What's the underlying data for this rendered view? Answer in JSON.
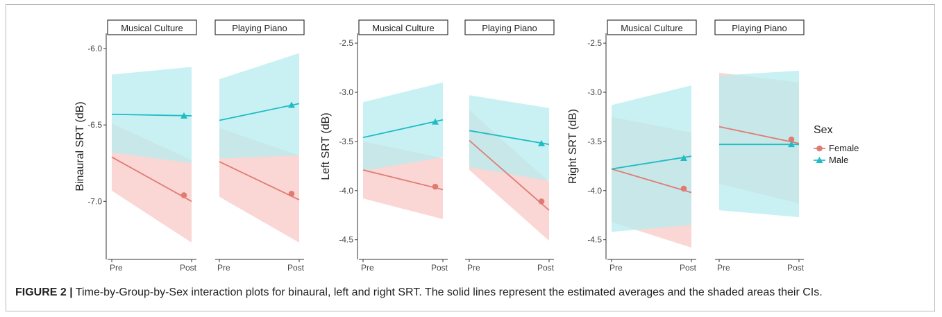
{
  "caption": {
    "label": "FIGURE 2 |",
    "text": " Time-by-Group-by-Sex interaction plots for binaural, left and right SRT. The solid lines represent the estimated averages and the shaded areas their CIs."
  },
  "colors": {
    "Female": "#e07b74",
    "Female_band": "#f8c9c6",
    "Male": "#1fbcc4",
    "Male_band": "#b7ecef"
  },
  "legend": {
    "title": "Sex",
    "items": [
      "Female",
      "Male"
    ],
    "placement": "right"
  },
  "chart_data": [
    {
      "type": "line",
      "ylabel": "Binaural SRT (dB)",
      "yticks": [
        -6.0,
        -6.5,
        -7.0
      ],
      "ylim": [
        -7.38,
        -5.9
      ],
      "x": [
        "Pre",
        "Post"
      ],
      "panels": [
        {
          "title": "Musical Culture",
          "series": [
            {
              "name": "Female",
              "values": [
                -6.71,
                -7.0
              ],
              "marker": -6.96,
              "ci_lower": [
                -6.93,
                -7.27
              ],
              "ci_upper": [
                -6.49,
                -6.73
              ]
            },
            {
              "name": "Male",
              "values": [
                -6.43,
                -6.44
              ],
              "marker": -6.44,
              "ci_lower": [
                -6.68,
                -6.75
              ],
              "ci_upper": [
                -6.17,
                -6.12
              ]
            }
          ]
        },
        {
          "title": "Playing Piano",
          "series": [
            {
              "name": "Female",
              "values": [
                -6.74,
                -6.99
              ],
              "marker": -6.95,
              "ci_lower": [
                -6.97,
                -7.27
              ],
              "ci_upper": [
                -6.52,
                -6.7
              ]
            },
            {
              "name": "Male",
              "values": [
                -6.47,
                -6.36
              ],
              "marker": -6.37,
              "ci_lower": [
                -6.72,
                -6.7
              ],
              "ci_upper": [
                -6.2,
                -6.03
              ]
            }
          ]
        }
      ]
    },
    {
      "type": "line",
      "ylabel": "Left SRT (dB)",
      "yticks": [
        -2.5,
        -3.0,
        -3.5,
        -4.0,
        -4.5
      ],
      "ylim": [
        -4.7,
        -2.4
      ],
      "x": [
        "Pre",
        "Post"
      ],
      "panels": [
        {
          "title": "Musical Culture",
          "series": [
            {
              "name": "Female",
              "values": [
                -3.79,
                -3.99
              ],
              "marker": -3.96,
              "ci_lower": [
                -4.08,
                -4.29
              ],
              "ci_upper": [
                -3.5,
                -3.67
              ]
            },
            {
              "name": "Male",
              "values": [
                -3.46,
                -3.28
              ],
              "marker": -3.3,
              "ci_lower": [
                -3.8,
                -3.66
              ],
              "ci_upper": [
                -3.1,
                -2.9
              ]
            }
          ]
        },
        {
          "title": "Playing Piano",
          "series": [
            {
              "name": "Female",
              "values": [
                -3.49,
                -4.2
              ],
              "marker": -4.11,
              "ci_lower": [
                -3.79,
                -4.51
              ],
              "ci_upper": [
                -3.18,
                -3.91
              ]
            },
            {
              "name": "Male",
              "values": [
                -3.39,
                -3.53
              ],
              "marker": -3.52,
              "ci_lower": [
                -3.76,
                -3.9
              ],
              "ci_upper": [
                -3.03,
                -3.16
              ]
            }
          ]
        }
      ]
    },
    {
      "type": "line",
      "ylabel": "Right SRT (dB)",
      "yticks": [
        -2.5,
        -3.0,
        -3.5,
        -4.0,
        -4.5
      ],
      "ylim": [
        -4.7,
        -2.4
      ],
      "x": [
        "Pre",
        "Post"
      ],
      "panels": [
        {
          "title": "Musical Culture",
          "series": [
            {
              "name": "Female",
              "values": [
                -3.78,
                -4.02
              ],
              "marker": -3.98,
              "ci_lower": [
                -4.32,
                -4.58
              ],
              "ci_upper": [
                -3.25,
                -3.41
              ]
            },
            {
              "name": "Male",
              "values": [
                -3.78,
                -3.65
              ],
              "marker": -3.67,
              "ci_lower": [
                -4.42,
                -4.35
              ],
              "ci_upper": [
                -3.13,
                -2.93
              ]
            }
          ]
        },
        {
          "title": "Playing Piano",
          "series": [
            {
              "name": "Female",
              "values": [
                -3.35,
                -3.52
              ],
              "marker": -3.48,
              "ci_lower": [
                -3.93,
                -4.13
              ],
              "ci_upper": [
                -2.8,
                -2.9
              ]
            },
            {
              "name": "Male",
              "values": [
                -3.53,
                -3.53
              ],
              "marker": -3.53,
              "ci_lower": [
                -4.2,
                -4.27
              ],
              "ci_upper": [
                -2.83,
                -2.78
              ]
            }
          ]
        }
      ]
    }
  ]
}
